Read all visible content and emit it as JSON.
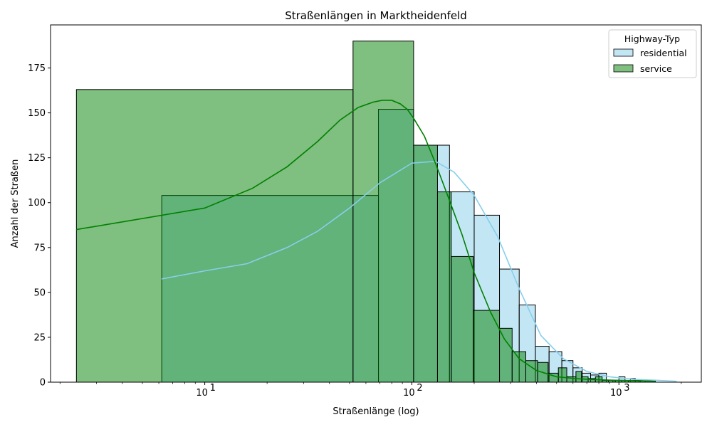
{
  "chart_data": {
    "type": "histogram",
    "title": "Straßenlängen in Marktheidenfeld",
    "xlabel": "Straßenlänge (log)",
    "ylabel": "Anzahl der Straßen",
    "xscale": "log",
    "xlim": [
      1.8,
      2500
    ],
    "ylim": [
      0,
      199
    ],
    "x_ticks": [
      {
        "value": 10,
        "base": "10",
        "exp": "1"
      },
      {
        "value": 100,
        "base": "10",
        "exp": "2"
      },
      {
        "value": 1000,
        "base": "10",
        "exp": "3"
      }
    ],
    "y_ticks": [
      0,
      25,
      50,
      75,
      100,
      125,
      150,
      175
    ],
    "legend": {
      "title": "Highway-Typ",
      "position": "top-right",
      "entries": [
        "residential",
        "service"
      ]
    },
    "series": [
      {
        "name": "residential",
        "fill": "#87CEEB",
        "fill_opacity": 0.5,
        "line_color": "#87CEEB",
        "bins": [
          {
            "x0": 6.2,
            "x1": 69,
            "count": 104
          },
          {
            "x0": 69,
            "x1": 102,
            "count": 152
          },
          {
            "x0": 102,
            "x1": 152,
            "count": 132
          },
          {
            "x0": 152,
            "x1": 200,
            "count": 106
          },
          {
            "x0": 200,
            "x1": 265,
            "count": 93
          },
          {
            "x0": 265,
            "x1": 330,
            "count": 63
          },
          {
            "x0": 330,
            "x1": 395,
            "count": 43
          },
          {
            "x0": 395,
            "x1": 460,
            "count": 20
          },
          {
            "x0": 460,
            "x1": 530,
            "count": 17
          },
          {
            "x0": 530,
            "x1": 600,
            "count": 12
          },
          {
            "x0": 600,
            "x1": 665,
            "count": 8
          },
          {
            "x0": 665,
            "x1": 730,
            "count": 5
          },
          {
            "x0": 730,
            "x1": 800,
            "count": 4
          },
          {
            "x0": 800,
            "x1": 870,
            "count": 5
          },
          {
            "x0": 870,
            "x1": 935,
            "count": 1
          },
          {
            "x0": 935,
            "x1": 1000,
            "count": 1
          },
          {
            "x0": 1000,
            "x1": 1070,
            "count": 3
          },
          {
            "x0": 1070,
            "x1": 1135,
            "count": 1
          },
          {
            "x0": 1135,
            "x1": 1200,
            "count": 2
          },
          {
            "x0": 1200,
            "x1": 1270,
            "count": 1
          },
          {
            "x0": 1270,
            "x1": 1340,
            "count": 1
          },
          {
            "x0": 1340,
            "x1": 1470,
            "count": 1
          }
        ],
        "kde": {
          "x": [
            6.2,
            10,
            16,
            25,
            35,
            50,
            70,
            100,
            130,
            160,
            200,
            260,
            330,
            420,
            540,
            700,
            900,
            1200,
            1550,
            1900
          ],
          "y": [
            57.5,
            62,
            66,
            75,
            84,
            97,
            111,
            122,
            123,
            117,
            104,
            81,
            52,
            26,
            13,
            6,
            3,
            1.5,
            1,
            0.5
          ]
        }
      },
      {
        "name": "service",
        "fill": "#008000",
        "fill_opacity": 0.5,
        "line_color": "#008000",
        "bins": [
          {
            "x0": 2.4,
            "x1": 52,
            "count": 163
          },
          {
            "x0": 52,
            "x1": 102,
            "count": 190
          },
          {
            "x0": 102,
            "x1": 133,
            "count": 132
          },
          {
            "x0": 133,
            "x1": 155,
            "count": 106
          },
          {
            "x0": 155,
            "x1": 198,
            "count": 70
          },
          {
            "x0": 198,
            "x1": 265,
            "count": 40
          },
          {
            "x0": 265,
            "x1": 305,
            "count": 30
          },
          {
            "x0": 305,
            "x1": 355,
            "count": 17
          },
          {
            "x0": 355,
            "x1": 405,
            "count": 12
          },
          {
            "x0": 405,
            "x1": 455,
            "count": 11
          },
          {
            "x0": 455,
            "x1": 510,
            "count": 5
          },
          {
            "x0": 510,
            "x1": 560,
            "count": 8
          },
          {
            "x0": 560,
            "x1": 620,
            "count": 3
          },
          {
            "x0": 620,
            "x1": 660,
            "count": 6
          },
          {
            "x0": 660,
            "x1": 710,
            "count": 3
          },
          {
            "x0": 710,
            "x1": 770,
            "count": 2
          },
          {
            "x0": 770,
            "x1": 830,
            "count": 3
          },
          {
            "x0": 830,
            "x1": 890,
            "count": 1
          },
          {
            "x0": 890,
            "x1": 960,
            "count": 1
          },
          {
            "x0": 960,
            "x1": 1030,
            "count": 1
          },
          {
            "x0": 1030,
            "x1": 1110,
            "count": 1
          },
          {
            "x0": 1110,
            "x1": 1250,
            "count": 1
          },
          {
            "x0": 1250,
            "x1": 1500,
            "count": 1
          }
        ],
        "kde": {
          "x": [
            2.4,
            10,
            17,
            25,
            35,
            45,
            55,
            65,
            72,
            80,
            88,
            95,
            102,
            115,
            130,
            150,
            175,
            200,
            240,
            280,
            330,
            400,
            500,
            650,
            800,
            1000,
            1200,
            1500
          ],
          "y": [
            85,
            97,
            108,
            120,
            134,
            146,
            153,
            156,
            157,
            157,
            155,
            152,
            147,
            137,
            122,
            103,
            82,
            61,
            39,
            24,
            13,
            6.5,
            3,
            1.8,
            1.3,
            1,
            0.8,
            0.5
          ]
        }
      }
    ]
  }
}
